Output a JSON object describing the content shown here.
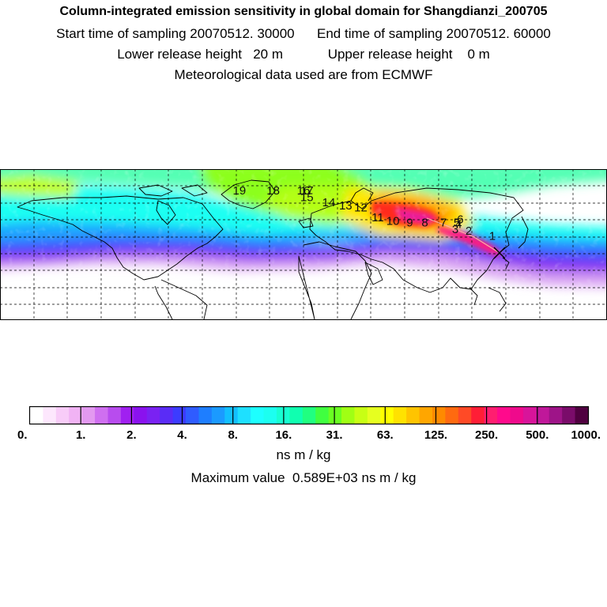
{
  "header": {
    "title": "Column-integrated emission sensitivity in global domain for Shangdianzi_200705",
    "start_label": "Start time of sampling",
    "start_value": "20070512. 30000",
    "end_label": "End time of sampling",
    "end_value": "20070512. 60000",
    "lower_label": "Lower release height",
    "lower_value": "20 m",
    "upper_label": "Upper release height",
    "upper_value": "0 m",
    "met_line": "Meteorological data used are from ECMWF"
  },
  "map": {
    "receptor_marker": "x-marker-icon",
    "trajectory_labels": [
      {
        "text": "1",
        "lon": 112,
        "lat": 48
      },
      {
        "text": "2",
        "lon": 98,
        "lat": 51
      },
      {
        "text": "3",
        "lon": 90,
        "lat": 52
      },
      {
        "text": "4",
        "lon": 92,
        "lat": 55
      },
      {
        "text": "5",
        "lon": 91,
        "lat": 56
      },
      {
        "text": "6",
        "lon": 93,
        "lat": 58
      },
      {
        "text": "7",
        "lon": 83,
        "lat": 56
      },
      {
        "text": "8",
        "lon": 72,
        "lat": 56
      },
      {
        "text": "9",
        "lon": 63,
        "lat": 56
      },
      {
        "text": "10",
        "lon": 53,
        "lat": 57
      },
      {
        "text": "11",
        "lon": 44,
        "lat": 59
      },
      {
        "text": "12",
        "lon": 34,
        "lat": 65
      },
      {
        "text": "13",
        "lon": 25,
        "lat": 66
      },
      {
        "text": "14",
        "lon": 15,
        "lat": 68
      },
      {
        "text": "15",
        "lon": 2,
        "lat": 71
      },
      {
        "text": "16",
        "lon": 0,
        "lat": 75
      },
      {
        "text": "17",
        "lon": 2,
        "lat": 75
      },
      {
        "text": "18",
        "lon": -18,
        "lat": 75
      },
      {
        "text": "19",
        "lon": -38,
        "lat": 75
      }
    ]
  },
  "colorbar": {
    "colors": [
      "#ffffff",
      "#fde7fd",
      "#f8ccf8",
      "#f1b3f4",
      "#e399f0",
      "#cf6ff0",
      "#b84cee",
      "#a020f0",
      "#8a12ee",
      "#7a22f2",
      "#5a2cf6",
      "#3c3cff",
      "#2f5cff",
      "#1e7eff",
      "#1b9aff",
      "#12bfff",
      "#1ee0ff",
      "#1dffff",
      "#1cfff0",
      "#17ffd2",
      "#10ffb0",
      "#20ff80",
      "#40ff40",
      "#6aff22",
      "#a0ff14",
      "#c8ff14",
      "#e6ff20",
      "#ffff00",
      "#ffe200",
      "#ffc400",
      "#ffa600",
      "#ff8a00",
      "#ff6a10",
      "#ff4a26",
      "#ff1e36",
      "#ff1e70",
      "#ff0a8c",
      "#ef0a8c",
      "#d8149a",
      "#c0189a",
      "#9e1488",
      "#7a0c6a",
      "#500040"
    ],
    "tick_labels": [
      "0.",
      "1.",
      "2.",
      "4.",
      "8.",
      "16.",
      "31.",
      "63.",
      "125.",
      "250.",
      "500.",
      "1000."
    ],
    "units": "ns m / kg",
    "max_label": "Maximum value",
    "max_value": "0.589E+03",
    "max_units": "ns m / kg"
  }
}
